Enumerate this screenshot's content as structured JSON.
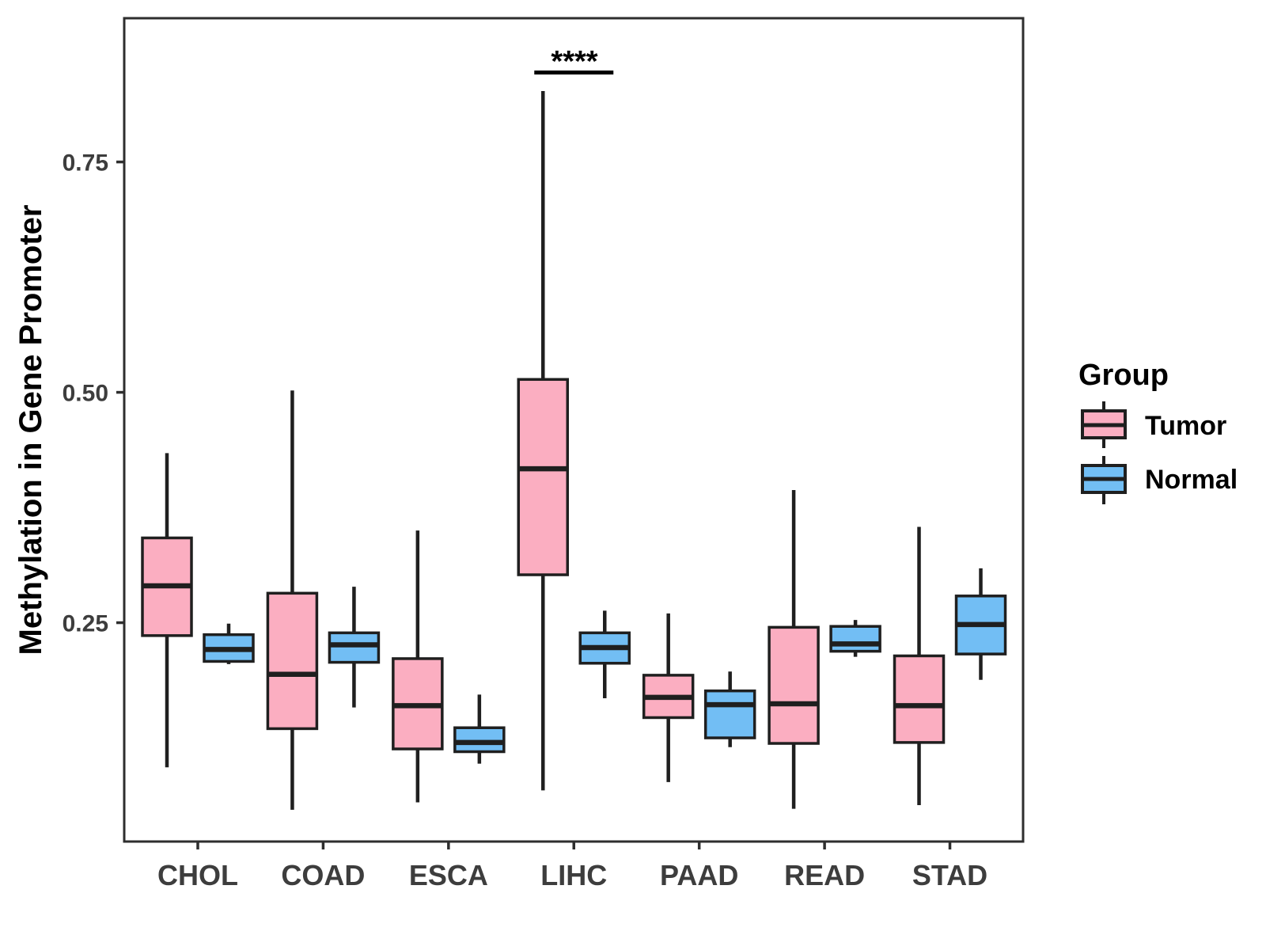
{
  "chart_data": {
    "type": "boxplot",
    "title": "",
    "xlabel": "",
    "ylabel": "Methylation in Gene Promoter",
    "groups": [
      "CHOL",
      "COAD",
      "ESCA",
      "LIHC",
      "PAAD",
      "READ",
      "STAD"
    ],
    "y_ticks": [
      {
        "label": "0.25",
        "value": 0.25
      },
      {
        "label": "0.50",
        "value": 0.5
      },
      {
        "label": "0.75",
        "value": 0.75
      }
    ],
    "ylim": [
      0.0125,
      0.906
    ],
    "grid": false,
    "legend_position": "right",
    "series": [
      {
        "name": "Tumor",
        "color": "#FBAEC1",
        "boxes": [
          {
            "group": "CHOL",
            "whisker_low": 0.093,
            "q1": 0.236,
            "median": 0.29,
            "q3": 0.342,
            "whisker_high": 0.434
          },
          {
            "group": "COAD",
            "whisker_low": 0.047,
            "q1": 0.135,
            "median": 0.194,
            "q3": 0.282,
            "whisker_high": 0.502
          },
          {
            "group": "ESCA",
            "whisker_low": 0.055,
            "q1": 0.113,
            "median": 0.16,
            "q3": 0.211,
            "whisker_high": 0.35
          },
          {
            "group": "LIHC",
            "whisker_low": 0.068,
            "q1": 0.302,
            "median": 0.417,
            "q3": 0.514,
            "whisker_high": 0.827
          },
          {
            "group": "PAAD",
            "whisker_low": 0.077,
            "q1": 0.147,
            "median": 0.169,
            "q3": 0.193,
            "whisker_high": 0.26
          },
          {
            "group": "READ",
            "whisker_low": 0.048,
            "q1": 0.119,
            "median": 0.162,
            "q3": 0.245,
            "whisker_high": 0.394
          },
          {
            "group": "STAD",
            "whisker_low": 0.052,
            "q1": 0.12,
            "median": 0.16,
            "q3": 0.214,
            "whisker_high": 0.354
          }
        ]
      },
      {
        "name": "Normal",
        "color": "#72BEF4",
        "boxes": [
          {
            "group": "CHOL",
            "whisker_low": 0.205,
            "q1": 0.208,
            "median": 0.221,
            "q3": 0.237,
            "whisker_high": 0.249
          },
          {
            "group": "COAD",
            "whisker_low": 0.158,
            "q1": 0.207,
            "median": 0.226,
            "q3": 0.239,
            "whisker_high": 0.289
          },
          {
            "group": "ESCA",
            "whisker_low": 0.097,
            "q1": 0.11,
            "median": 0.12,
            "q3": 0.136,
            "whisker_high": 0.172
          },
          {
            "group": "LIHC",
            "whisker_low": 0.168,
            "q1": 0.206,
            "median": 0.223,
            "q3": 0.239,
            "whisker_high": 0.263
          },
          {
            "group": "PAAD",
            "whisker_low": 0.115,
            "q1": 0.125,
            "median": 0.161,
            "q3": 0.176,
            "whisker_high": 0.197
          },
          {
            "group": "READ",
            "whisker_low": 0.213,
            "q1": 0.219,
            "median": 0.227,
            "q3": 0.246,
            "whisker_high": 0.253
          },
          {
            "group": "STAD",
            "whisker_low": 0.188,
            "q1": 0.216,
            "median": 0.248,
            "q3": 0.279,
            "whisker_high": 0.309
          }
        ]
      }
    ],
    "annotation": {
      "label": "****",
      "group": "LIHC",
      "bar_y": 0.847
    }
  },
  "legend": {
    "title": "Group",
    "items": [
      {
        "label": "Tumor",
        "color": "#FBAEC1"
      },
      {
        "label": "Normal",
        "color": "#72BEF4"
      }
    ]
  }
}
